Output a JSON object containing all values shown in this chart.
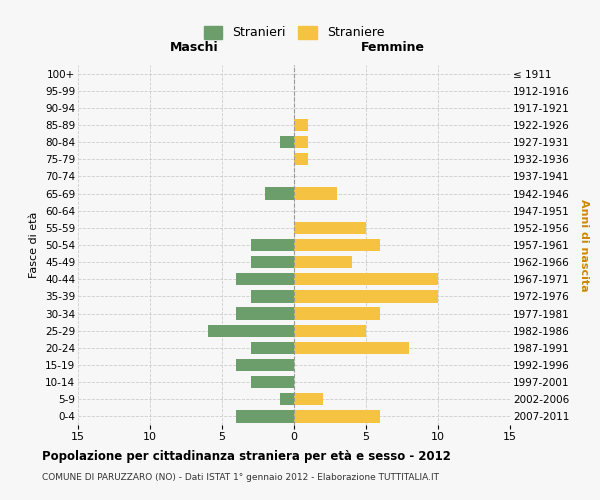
{
  "age_groups": [
    "100+",
    "95-99",
    "90-94",
    "85-89",
    "80-84",
    "75-79",
    "70-74",
    "65-69",
    "60-64",
    "55-59",
    "50-54",
    "45-49",
    "40-44",
    "35-39",
    "30-34",
    "25-29",
    "20-24",
    "15-19",
    "10-14",
    "5-9",
    "0-4"
  ],
  "birth_years": [
    "≤ 1911",
    "1912-1916",
    "1917-1921",
    "1922-1926",
    "1927-1931",
    "1932-1936",
    "1937-1941",
    "1942-1946",
    "1947-1951",
    "1952-1956",
    "1957-1961",
    "1962-1966",
    "1967-1971",
    "1972-1976",
    "1977-1981",
    "1982-1986",
    "1987-1991",
    "1992-1996",
    "1997-2001",
    "2002-2006",
    "2007-2011"
  ],
  "males": [
    0,
    0,
    0,
    0,
    1,
    0,
    0,
    2,
    0,
    0,
    3,
    3,
    4,
    3,
    4,
    6,
    3,
    4,
    3,
    1,
    4
  ],
  "females": [
    0,
    0,
    0,
    1,
    1,
    1,
    0,
    3,
    0,
    5,
    6,
    4,
    10,
    10,
    6,
    5,
    8,
    0,
    0,
    2,
    6
  ],
  "male_color": "#6b9e6b",
  "female_color": "#f5c242",
  "background_color": "#f7f7f7",
  "grid_color": "#cccccc",
  "title": "Popolazione per cittadinanza straniera per età e sesso - 2012",
  "subtitle": "COMUNE DI PARUZZARO (NO) - Dati ISTAT 1° gennaio 2012 - Elaborazione TUTTITALIA.IT",
  "xlabel_left": "Maschi",
  "xlabel_right": "Femmine",
  "ylabel_left": "Fasce di età",
  "ylabel_right": "Anni di nascita",
  "xlim": 15,
  "legend_labels": [
    "Stranieri",
    "Straniere"
  ]
}
